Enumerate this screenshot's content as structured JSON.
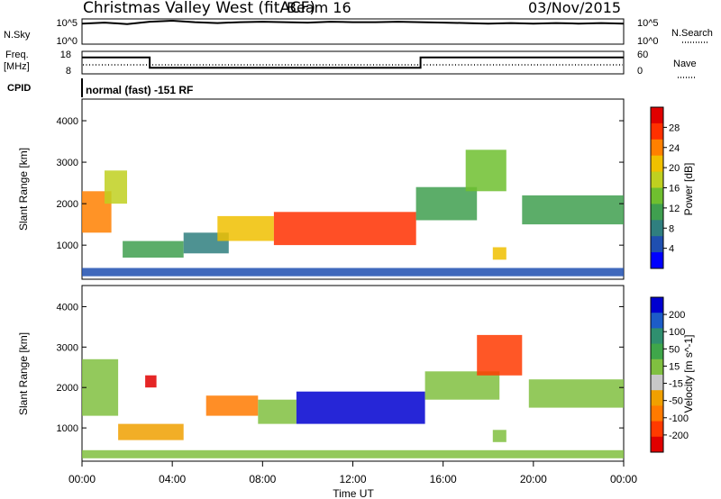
{
  "header": {
    "station": "Christmas Valley West (fitACF)",
    "beam": "Beam 16",
    "date": "03/Nov/2015"
  },
  "top_panels": {
    "nsky_label": "N.Sky",
    "nsky_ticks": [
      "10^5",
      "10^0"
    ],
    "nsearch_label": "N.Search",
    "freq_label_1": "Freq.",
    "freq_label_2": "[MHz]",
    "freq_ticks": [
      "18",
      "8"
    ],
    "nave_label": "Nave",
    "nave_ticks": [
      "60",
      "0"
    ],
    "cpid_label": "CPID",
    "cpid_value": "normal (fast) -151 RF"
  },
  "colors": {
    "power_scale": [
      "#0000ff",
      "#1f4fb0",
      "#2f7f7f",
      "#3f9f4f",
      "#6fbf2f",
      "#bfd020",
      "#f0c000",
      "#ff8000",
      "#ff3000",
      "#e00000"
    ],
    "velocity_scale": [
      "#0000d0",
      "#1c5cc8",
      "#2f8f6f",
      "#3fa64a",
      "#80c040",
      "#c8c8c8",
      "#f0a000",
      "#ff7a00",
      "#ff3a00",
      "#e00000"
    ]
  },
  "chart_data": [
    {
      "type": "line",
      "panel": "N.Sky / N.Search",
      "x": [
        "00:00",
        "01:00",
        "02:00",
        "03:00",
        "04:00",
        "05:00",
        "06:00",
        "07:00",
        "08:00",
        "09:00",
        "10:00",
        "11:00",
        "12:00",
        "13:00",
        "14:00",
        "15:00",
        "16:00",
        "17:00",
        "18:00",
        "19:00",
        "20:00",
        "21:00",
        "22:00",
        "23:00",
        "24:00"
      ],
      "y": [
        4.2,
        4.4,
        4.1,
        4.6,
        4.8,
        4.5,
        4.3,
        4.5,
        4.6,
        4.5,
        4.4,
        4.6,
        4.5,
        4.5,
        4.6,
        4.5,
        4.4,
        4.3,
        4.2,
        4.3,
        4.2,
        4.3,
        4.2,
        4.3,
        4.2
      ],
      "ylim": [
        0,
        5
      ]
    },
    {
      "type": "line",
      "panel": "Frequency / Nave",
      "x": [
        "00:00",
        "03:00",
        "03:00",
        "15:00",
        "15:00",
        "24:00"
      ],
      "y": [
        15.5,
        15.5,
        10.5,
        10.5,
        15.5,
        15.5
      ],
      "ylim": [
        8,
        18
      ]
    },
    {
      "type": "heatmap",
      "panel": "Power",
      "xlabel": "",
      "ylabel": "Slant Range [km]",
      "y_ticks": [
        "4000",
        "3000",
        "2000",
        "1000"
      ],
      "ylim": [
        200,
        4500
      ],
      "colorbar_label": "Power [dB]",
      "colorbar_ticks": [
        "28",
        "24",
        "20",
        "16",
        "12",
        "8",
        "4"
      ],
      "colorbar_range": [
        0,
        32
      ],
      "regions": [
        {
          "t0": 0.0,
          "t1": 1.3,
          "r0": 1300,
          "r1": 2300,
          "value": 24
        },
        {
          "t0": 1.0,
          "t1": 2.0,
          "r0": 2000,
          "r1": 2800,
          "value": 18
        },
        {
          "t0": 1.8,
          "t1": 4.5,
          "r0": 700,
          "r1": 1100,
          "value": 10
        },
        {
          "t0": 4.5,
          "t1": 6.5,
          "r0": 800,
          "r1": 1300,
          "value": 8
        },
        {
          "t0": 6.0,
          "t1": 8.5,
          "r0": 1100,
          "r1": 1700,
          "value": 20
        },
        {
          "t0": 8.5,
          "t1": 14.8,
          "r0": 1000,
          "r1": 1800,
          "value": 26
        },
        {
          "t0": 14.8,
          "t1": 17.5,
          "r0": 1600,
          "r1": 2400,
          "value": 12
        },
        {
          "t0": 17.0,
          "t1": 18.8,
          "r0": 2300,
          "r1": 3300,
          "value": 14
        },
        {
          "t0": 18.2,
          "t1": 18.8,
          "r0": 650,
          "r1": 950,
          "value": 22
        },
        {
          "t0": 19.5,
          "t1": 24.0,
          "r0": 1500,
          "r1": 2200,
          "value": 10
        },
        {
          "t0": 0.0,
          "t1": 24.0,
          "r0": 250,
          "r1": 450,
          "value": 6
        }
      ]
    },
    {
      "type": "heatmap",
      "panel": "Velocity",
      "xlabel": "Time UT",
      "ylabel": "Slant Range [km]",
      "x_ticks": [
        "00:00",
        "04:00",
        "08:00",
        "12:00",
        "16:00",
        "20:00",
        "00:00"
      ],
      "y_ticks": [
        "4000",
        "3000",
        "2000",
        "1000"
      ],
      "ylim": [
        200,
        4500
      ],
      "colorbar_label": "Velocity [m s^-1]",
      "colorbar_ticks": [
        "200",
        "100",
        "50",
        "15",
        "-15",
        "-50",
        "-100",
        "-200"
      ],
      "colorbar_range": [
        -250,
        250
      ],
      "regions": [
        {
          "t0": 0.0,
          "t1": 1.6,
          "r0": 1300,
          "r1": 2700,
          "value": 0
        },
        {
          "t0": 1.6,
          "t1": 4.5,
          "r0": 700,
          "r1": 1100,
          "value": -60
        },
        {
          "t0": 2.8,
          "t1": 3.3,
          "r0": 2000,
          "r1": 2300,
          "value": -220
        },
        {
          "t0": 5.5,
          "t1": 7.8,
          "r0": 1300,
          "r1": 1800,
          "value": -120
        },
        {
          "t0": 7.8,
          "t1": 9.5,
          "r0": 1100,
          "r1": 1700,
          "value": 40
        },
        {
          "t0": 9.5,
          "t1": 15.2,
          "r0": 1100,
          "r1": 1900,
          "value": 220
        },
        {
          "t0": 15.2,
          "t1": 18.5,
          "r0": 1700,
          "r1": 2400,
          "value": 0
        },
        {
          "t0": 17.5,
          "t1": 19.5,
          "r0": 2300,
          "r1": 3300,
          "value": -180
        },
        {
          "t0": 18.2,
          "t1": 18.8,
          "r0": 650,
          "r1": 950,
          "value": 0
        },
        {
          "t0": 19.8,
          "t1": 24.0,
          "r0": 1500,
          "r1": 2200,
          "value": 30
        },
        {
          "t0": 0.0,
          "t1": 24.0,
          "r0": 250,
          "r1": 450,
          "value": 0
        }
      ]
    }
  ]
}
